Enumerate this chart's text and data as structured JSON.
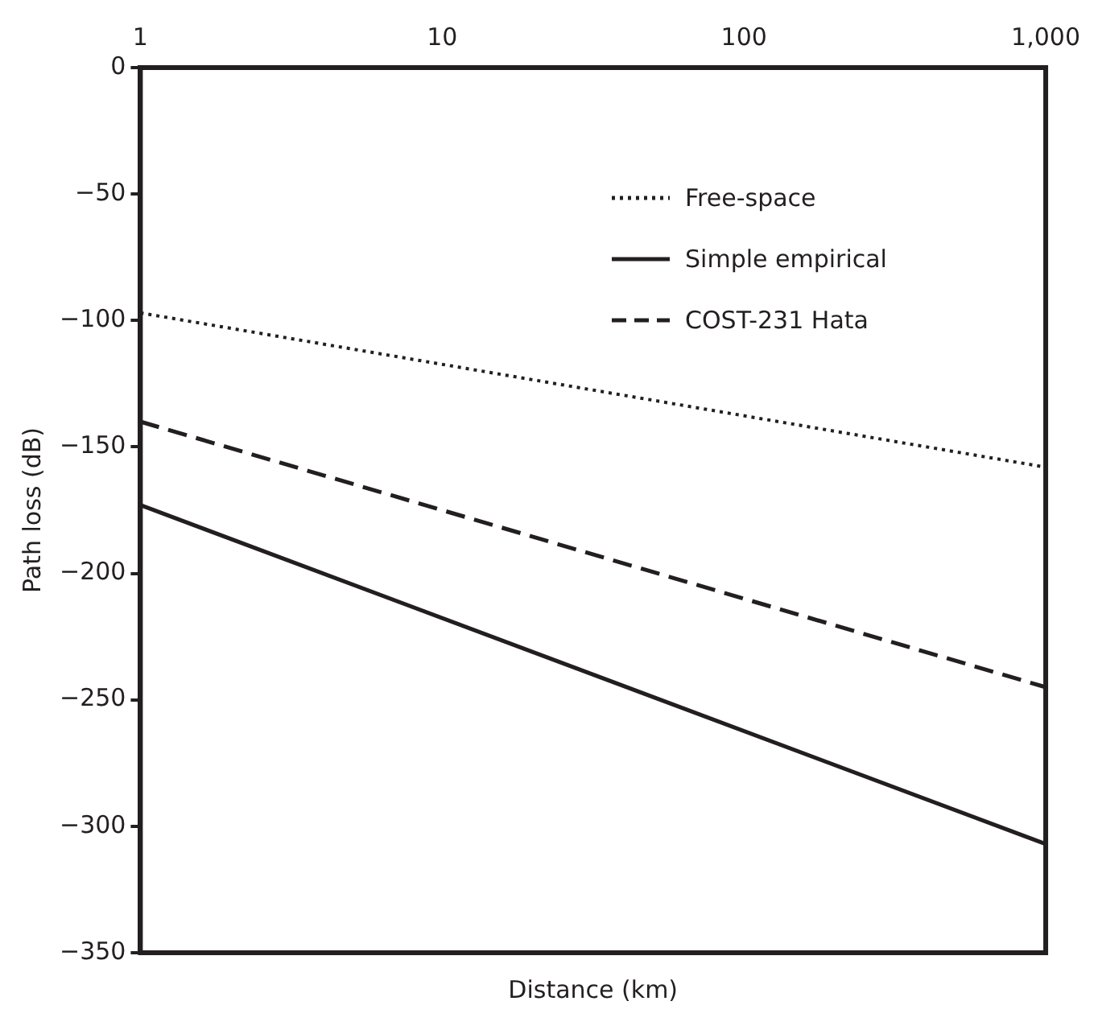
{
  "chart_data": {
    "type": "line",
    "xlabel": "Distance (km)",
    "ylabel": "Path loss (dB)",
    "log": "x",
    "xlim": [
      1,
      1000
    ],
    "xticks": [
      1,
      10,
      100,
      {
        "value": 1000,
        "label": "1,000"
      }
    ],
    "ylim": [
      -350,
      0
    ],
    "yticks": [
      {
        "value": -350,
        "label": "−350"
      },
      {
        "value": -300,
        "label": "−300"
      },
      {
        "value": -250,
        "label": "−250"
      },
      {
        "value": -200,
        "label": "−200"
      },
      {
        "value": -150,
        "label": "−150"
      },
      {
        "value": -100,
        "label": "−100"
      },
      {
        "value": -50,
        "label": "−50"
      },
      0
    ],
    "grid": false,
    "legend": "top right",
    "marker": "none",
    "x": [
      1,
      1000
    ],
    "series": [
      {
        "name": "Free-space",
        "color": "#231f20",
        "line_style": "dotted",
        "values": [
          -97,
          -158
        ]
      },
      {
        "name": "Simple empirical",
        "color": "#231f20",
        "line_style": "solid",
        "values": [
          -173,
          -307
        ]
      },
      {
        "name": "COST-231 Hata",
        "color": "#231f20",
        "line_style": "dashed",
        "values": [
          -140,
          -245
        ]
      }
    ]
  }
}
